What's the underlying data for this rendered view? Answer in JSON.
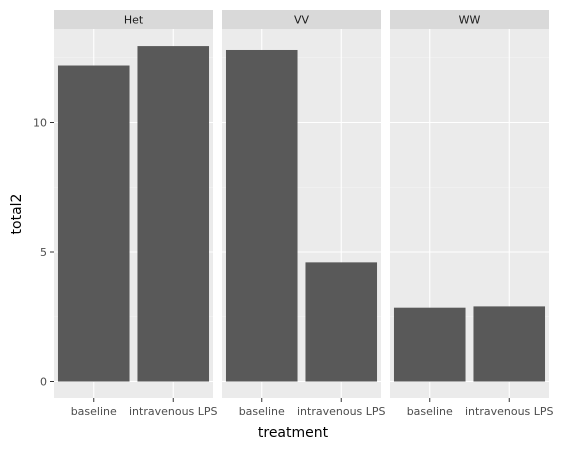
{
  "chart_data": {
    "type": "bar",
    "facet_variable": "genotype",
    "categories": [
      "baseline",
      "intravenous LPS"
    ],
    "facets": [
      {
        "name": "Het",
        "values": [
          12.2,
          12.95
        ]
      },
      {
        "name": "VV",
        "values": [
          12.8,
          4.6
        ]
      },
      {
        "name": "WW",
        "values": [
          2.85,
          2.9
        ]
      }
    ],
    "xlabel": "treatment",
    "ylabel": "total2",
    "ylim": [
      -0.65,
      13.6
    ],
    "yticks": [
      0,
      5,
      10
    ],
    "grid": true,
    "colors": {
      "bar": "#595959",
      "panel": "#ebebeb",
      "strip": "#d9d9d9",
      "grid_major": "#ffffff",
      "grid_minor": "#f5f5f5",
      "tick": "#333333"
    }
  }
}
